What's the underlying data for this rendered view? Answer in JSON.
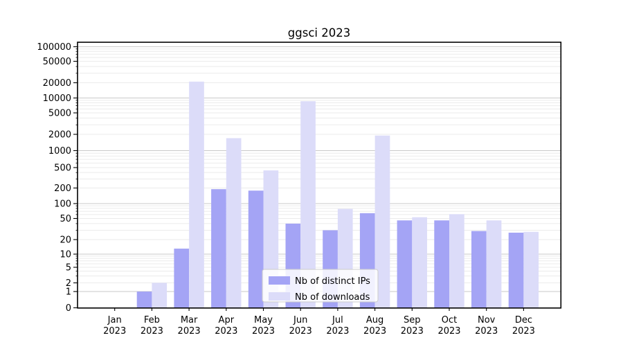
{
  "chart_data": {
    "type": "bar",
    "title": "ggsci 2023",
    "categories": [
      "Jan",
      "Feb",
      "Mar",
      "Apr",
      "May",
      "Jun",
      "Jul",
      "Aug",
      "Sep",
      "Oct",
      "Nov",
      "Dec"
    ],
    "year_label": "2023",
    "series": [
      {
        "name": "Nb of distinct IPs",
        "color": "#a4a4f5",
        "values": [
          0,
          1,
          13,
          190,
          178,
          40,
          30,
          64,
          46,
          46,
          29,
          27
        ]
      },
      {
        "name": "Nb of downloads",
        "color": "#dcdcf9",
        "values": [
          0,
          2,
          21000,
          1700,
          440,
          8600,
          78,
          1900,
          53,
          61,
          46,
          28
        ]
      }
    ],
    "y_axis": {
      "scale": "symlog",
      "range": [
        0,
        100000
      ],
      "tick_labels": [
        "100000",
        "50000",
        "20000",
        "10000",
        "5000",
        "2000",
        "1000",
        "500",
        "200",
        "100",
        "50",
        "20",
        "10",
        "5",
        "2",
        "1",
        "0"
      ],
      "tick_values": [
        100000,
        50000,
        20000,
        10000,
        5000,
        2000,
        1000,
        500,
        200,
        100,
        50,
        20,
        10,
        5,
        2,
        1,
        0
      ]
    },
    "legend": {
      "entries": [
        "Nb of distinct IPs",
        "Nb of downloads"
      ],
      "position": "lower-center"
    },
    "grid": true,
    "colors": {
      "major_grid": "#c9c9c9",
      "minor_grid": "#ebebeb",
      "axis": "#000000",
      "background": "#ffffff"
    }
  }
}
